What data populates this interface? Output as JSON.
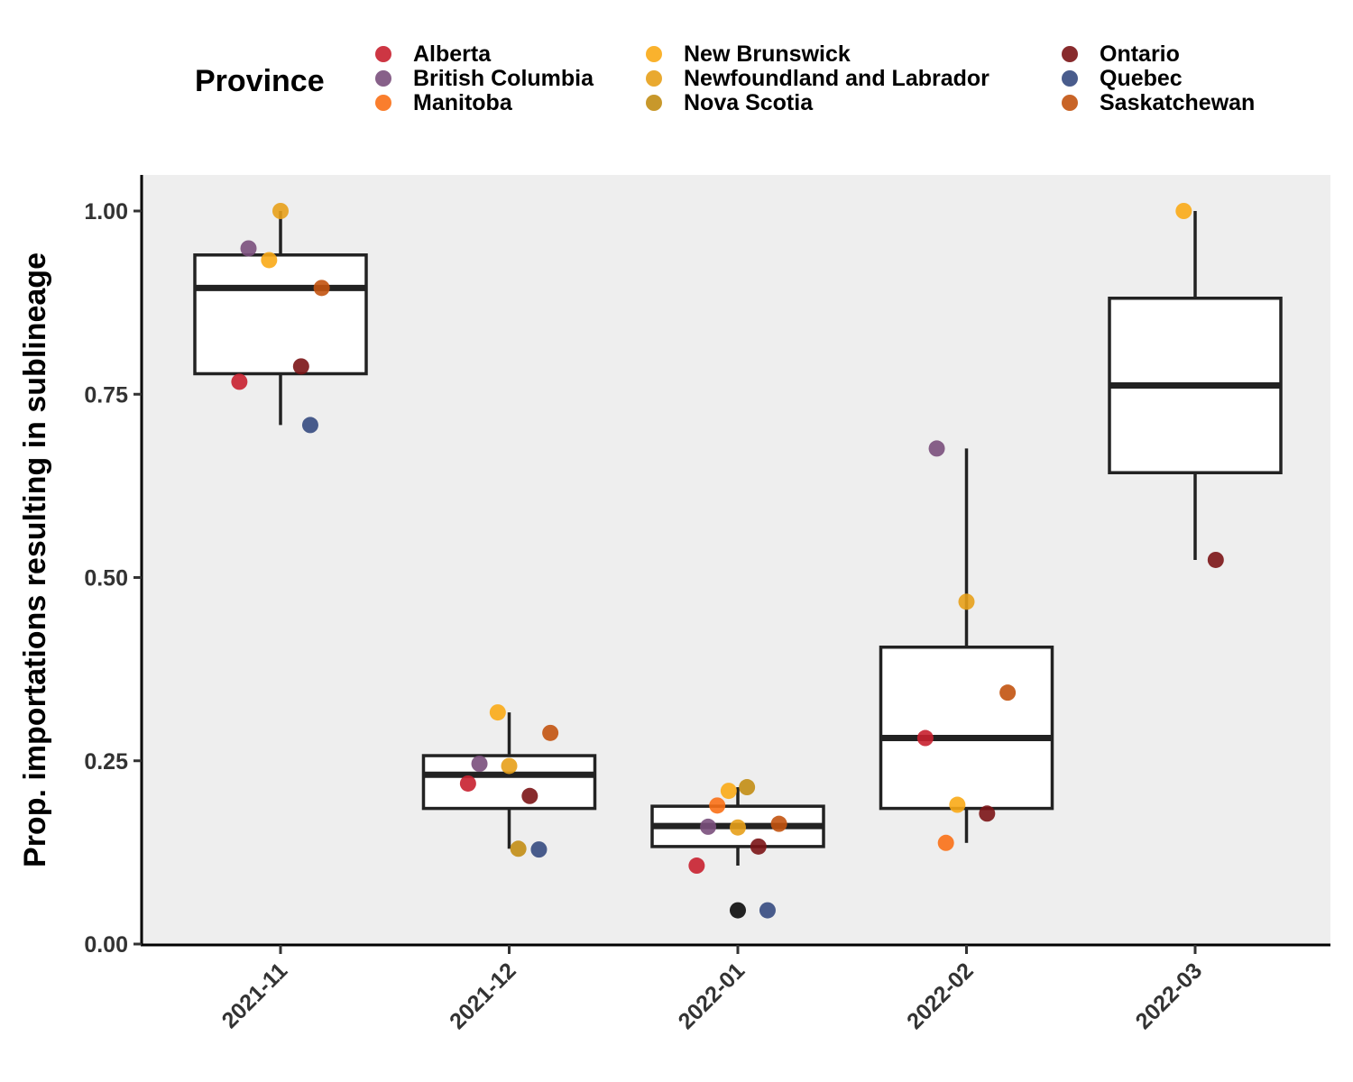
{
  "legend": {
    "title": "Province",
    "items": [
      {
        "label": "Alberta",
        "color": "#C8202F"
      },
      {
        "label": "British Columbia",
        "color": "#7A4F7C"
      },
      {
        "label": "Manitoba",
        "color": "#F97016"
      },
      {
        "label": "New Brunswick",
        "color": "#F9AA16"
      },
      {
        "label": "Newfoundland and Labrador",
        "color": "#E7A01A"
      },
      {
        "label": "Nova Scotia",
        "color": "#C28D14"
      },
      {
        "label": "Ontario",
        "color": "#7B1416"
      },
      {
        "label": "Quebec",
        "color": "#354A80"
      },
      {
        "label": "Saskatchewan",
        "color": "#C2530F"
      }
    ]
  },
  "chart_data": {
    "type": "boxplot-with-jittered-points",
    "ylabel": "Prop. importations resulting in sublineage",
    "xlabel": "",
    "ylim": [
      0,
      1.05
    ],
    "yticks": [
      0,
      0.25,
      0.5,
      0.75,
      1.0
    ],
    "ytick_labels": [
      "0.00",
      "0.25",
      "0.50",
      "0.75",
      "1.00"
    ],
    "categories": [
      "2021-11",
      "2021-12",
      "2022-01",
      "2022-02",
      "2022-03"
    ],
    "boxes": [
      {
        "category": "2021-11",
        "whisker_low": 0.708,
        "q1": 0.778,
        "median": 0.895,
        "q3": 0.94,
        "whisker_high": 1.0
      },
      {
        "category": "2021-12",
        "whisker_low": 0.13,
        "q1": 0.185,
        "median": 0.231,
        "q3": 0.257,
        "whisker_high": 0.316
      },
      {
        "category": "2022-01",
        "whisker_low": 0.107,
        "q1": 0.133,
        "median": 0.161,
        "q3": 0.188,
        "whisker_high": 0.214
      },
      {
        "category": "2022-02",
        "whisker_low": 0.138,
        "q1": 0.185,
        "median": 0.281,
        "q3": 0.405,
        "whisker_high": 0.676
      },
      {
        "category": "2022-03",
        "whisker_low": 0.524,
        "q1": 0.643,
        "median": 0.762,
        "q3": 0.881,
        "whisker_high": 1.0
      }
    ],
    "points": [
      {
        "category": "2021-11",
        "jitter": -0.18,
        "value": 0.767,
        "province": "Alberta"
      },
      {
        "category": "2021-11",
        "jitter": -0.14,
        "value": 0.949,
        "province": "British Columbia"
      },
      {
        "category": "2021-11",
        "jitter": -0.05,
        "value": 0.933,
        "province": "New Brunswick"
      },
      {
        "category": "2021-11",
        "jitter": 0.0,
        "value": 1.0,
        "province": "Newfoundland and Labrador"
      },
      {
        "category": "2021-11",
        "jitter": 0.09,
        "value": 0.788,
        "province": "Ontario"
      },
      {
        "category": "2021-11",
        "jitter": 0.13,
        "value": 0.708,
        "province": "Quebec"
      },
      {
        "category": "2021-11",
        "jitter": 0.18,
        "value": 0.895,
        "province": "Saskatchewan"
      },
      {
        "category": "2021-12",
        "jitter": -0.18,
        "value": 0.219,
        "province": "Alberta"
      },
      {
        "category": "2021-12",
        "jitter": -0.13,
        "value": 0.246,
        "province": "British Columbia"
      },
      {
        "category": "2021-12",
        "jitter": -0.05,
        "value": 0.316,
        "province": "New Brunswick"
      },
      {
        "category": "2021-12",
        "jitter": 0.0,
        "value": 0.243,
        "province": "Newfoundland and Labrador"
      },
      {
        "category": "2021-12",
        "jitter": 0.04,
        "value": 0.13,
        "province": "Nova Scotia"
      },
      {
        "category": "2021-12",
        "jitter": 0.09,
        "value": 0.202,
        "province": "Ontario"
      },
      {
        "category": "2021-12",
        "jitter": 0.13,
        "value": 0.129,
        "province": "Quebec"
      },
      {
        "category": "2021-12",
        "jitter": 0.18,
        "value": 0.288,
        "province": "Saskatchewan"
      },
      {
        "category": "2022-01",
        "jitter": -0.18,
        "value": 0.107,
        "province": "Alberta"
      },
      {
        "category": "2022-01",
        "jitter": -0.13,
        "value": 0.16,
        "province": "British Columbia"
      },
      {
        "category": "2022-01",
        "jitter": -0.09,
        "value": 0.189,
        "province": "Manitoba"
      },
      {
        "category": "2022-01",
        "jitter": -0.04,
        "value": 0.209,
        "province": "New Brunswick"
      },
      {
        "category": "2022-01",
        "jitter": 0.0,
        "value": 0.159,
        "province": "Newfoundland and Labrador"
      },
      {
        "category": "2022-01",
        "jitter": 0.04,
        "value": 0.214,
        "province": "Nova Scotia"
      },
      {
        "category": "2022-01",
        "jitter": 0.09,
        "value": 0.133,
        "province": "Ontario"
      },
      {
        "category": "2022-01",
        "jitter": 0.13,
        "value": 0.046,
        "province": "Quebec"
      },
      {
        "category": "2022-01",
        "jitter": 0.18,
        "value": 0.164,
        "province": "Saskatchewan"
      },
      {
        "category": "2022-02",
        "jitter": -0.18,
        "value": 0.281,
        "province": "Alberta"
      },
      {
        "category": "2022-02",
        "jitter": -0.13,
        "value": 0.676,
        "province": "British Columbia"
      },
      {
        "category": "2022-02",
        "jitter": -0.09,
        "value": 0.138,
        "province": "Manitoba"
      },
      {
        "category": "2022-02",
        "jitter": -0.04,
        "value": 0.19,
        "province": "New Brunswick"
      },
      {
        "category": "2022-02",
        "jitter": 0.0,
        "value": 0.467,
        "province": "Newfoundland and Labrador"
      },
      {
        "category": "2022-02",
        "jitter": 0.09,
        "value": 0.178,
        "province": "Ontario"
      },
      {
        "category": "2022-02",
        "jitter": 0.18,
        "value": 0.343,
        "province": "Saskatchewan"
      },
      {
        "category": "2022-03",
        "jitter": -0.05,
        "value": 1.0,
        "province": "New Brunswick"
      },
      {
        "category": "2022-03",
        "jitter": 0.09,
        "value": 0.524,
        "province": "Ontario"
      }
    ],
    "outliers": [
      {
        "category": "2022-01",
        "value": 0.046,
        "color": "#222222"
      }
    ],
    "grid": false,
    "legend_position": "top",
    "panel_background": "#EEEEEE"
  }
}
